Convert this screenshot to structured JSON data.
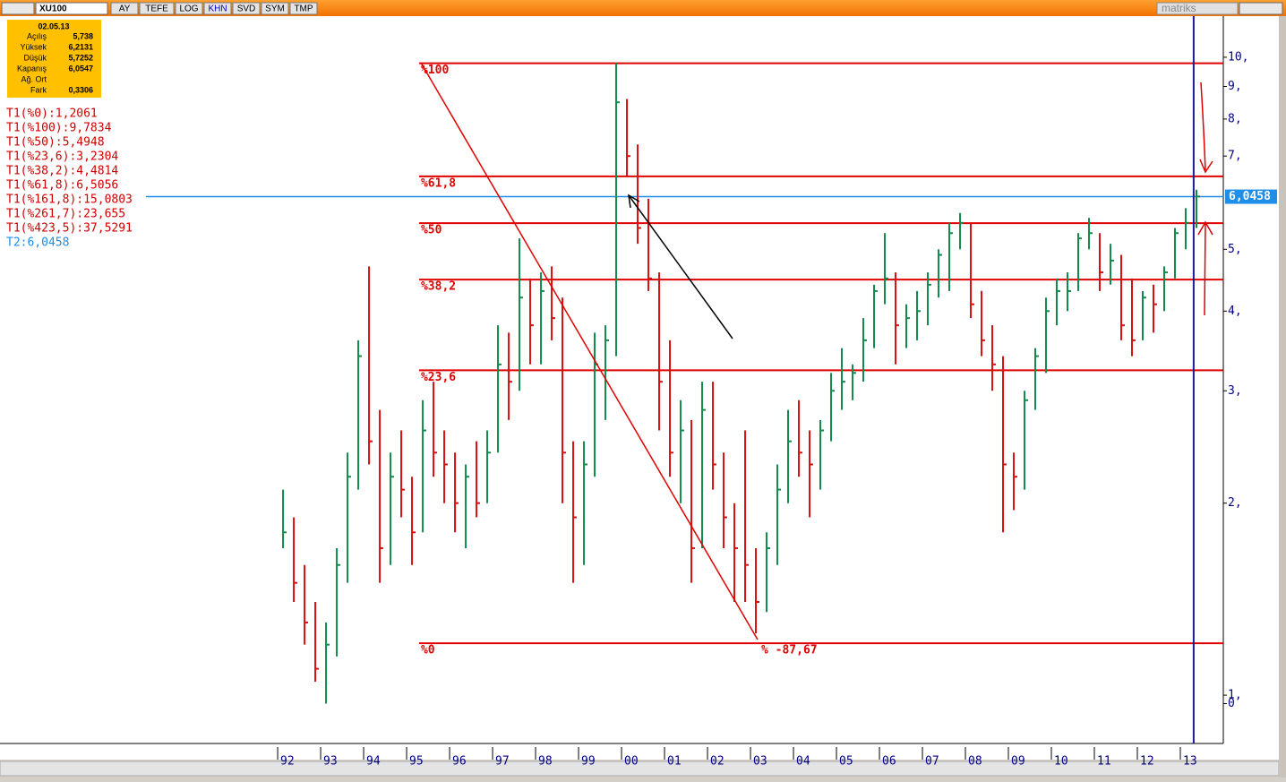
{
  "toolbar": {
    "symbol": "XU100",
    "buttons": [
      "AY",
      "TEFE",
      "LOG",
      "KHN",
      "SVD",
      "SYM",
      "TMP"
    ],
    "brand": "matriks"
  },
  "info": {
    "date": "02.05.13",
    "rows": [
      [
        "Açılış",
        "5,738"
      ],
      [
        "Yüksek",
        "6,2131"
      ],
      [
        "Düşük",
        "5,7252"
      ],
      [
        "Kapanış",
        "6,0547"
      ],
      [
        "Ağ. Ort"
      ],
      [
        "Fark",
        "0,3306"
      ]
    ]
  },
  "notes": [
    "T1(%0):1,2061",
    "T1(%100):9,7834",
    "T1(%50):5,4948",
    "T1(%23,6):3,2304",
    "T1(%38,2):4,4814",
    "T1(%61,8):6,5056",
    "T1(%161,8):15,0803",
    "T1(%261,7):23,655",
    "T1(%423,5):37,5291"
  ],
  "note2": "T2:6,0458",
  "chart_data": {
    "type": "ohlc",
    "log_scale": true,
    "up_color": "#128a4c",
    "down_color": "#d81010",
    "xlim": [
      1985.54,
      2014
    ],
    "ylim": [
      0.84,
      11.6
    ],
    "xticks": [
      {
        "value": 1992,
        "label": "92"
      },
      {
        "value": 1993,
        "label": "93"
      },
      {
        "value": 1994,
        "label": "94"
      },
      {
        "value": 1995,
        "label": "95"
      },
      {
        "value": 1996,
        "label": "96"
      },
      {
        "value": 1997,
        "label": "97"
      },
      {
        "value": 1998,
        "label": "98"
      },
      {
        "value": 1999,
        "label": "99"
      },
      {
        "value": 2000,
        "label": "00"
      },
      {
        "value": 2001,
        "label": "01"
      },
      {
        "value": 2002,
        "label": "02"
      },
      {
        "value": 2003,
        "label": "03"
      },
      {
        "value": 2004,
        "label": "04"
      },
      {
        "value": 2005,
        "label": "05"
      },
      {
        "value": 2006,
        "label": "06"
      },
      {
        "value": 2007,
        "label": "07"
      },
      {
        "value": 2008,
        "label": "08"
      },
      {
        "value": 2009,
        "label": "09"
      },
      {
        "value": 2010,
        "label": "10"
      },
      {
        "value": 2011,
        "label": "11"
      },
      {
        "value": 2012,
        "label": "12"
      },
      {
        "value": 2013,
        "label": "13"
      }
    ],
    "yticks": [
      {
        "value": 10,
        "label": "10,"
      },
      {
        "value": 9,
        "label": "9,"
      },
      {
        "value": 8,
        "label": "8,"
      },
      {
        "value": 7,
        "label": "7,"
      },
      {
        "value": 5,
        "label": "5,"
      },
      {
        "value": 4,
        "label": "4,"
      },
      {
        "value": 3,
        "label": "3,"
      },
      {
        "value": 2,
        "label": "2,"
      },
      {
        "value": 1,
        "label": "1,"
      },
      {
        "value": 0.97,
        "label": "0"
      }
    ],
    "fib_levels": [
      {
        "value": 9.7834,
        "label": "%100"
      },
      {
        "value": 6.5056,
        "label": "%61,8"
      },
      {
        "value": 5.4948,
        "label": "%50"
      },
      {
        "value": 4.4814,
        "label": "%38,2"
      },
      {
        "value": 3.2304,
        "label": "%23,6"
      },
      {
        "value": 1.2061,
        "label": "%0"
      }
    ],
    "fib_color": "#e00000",
    "fib_start": 1995.29,
    "trend_label": "% -87,67",
    "current": {
      "value": 6.0458,
      "label": "6,0458",
      "color": "#1e8ee8"
    },
    "cursor_x": 2013.31,
    "x": [
      1992.125,
      1992.375,
      1992.625,
      1992.875,
      1993.125,
      1993.375,
      1993.625,
      1993.875,
      1994.125,
      1994.375,
      1994.625,
      1994.875,
      1995.125,
      1995.375,
      1995.625,
      1995.875,
      1996.125,
      1996.375,
      1996.625,
      1996.875,
      1997.125,
      1997.375,
      1997.625,
      1997.875,
      1998.125,
      1998.375,
      1998.625,
      1998.875,
      1999.125,
      1999.375,
      1999.625,
      1999.875,
      2000.125,
      2000.375,
      2000.625,
      2000.875,
      2001.125,
      2001.375,
      2001.625,
      2001.875,
      2002.125,
      2002.375,
      2002.625,
      2002.875,
      2003.125,
      2003.375,
      2003.625,
      2003.875,
      2004.125,
      2004.375,
      2004.625,
      2004.875,
      2005.125,
      2005.375,
      2005.625,
      2005.875,
      2006.125,
      2006.375,
      2006.625,
      2006.875,
      2007.125,
      2007.375,
      2007.625,
      2007.875,
      2008.125,
      2008.375,
      2008.625,
      2008.875,
      2009.125,
      2009.375,
      2009.625,
      2009.875,
      2010.125,
      2010.375,
      2010.625,
      2010.875,
      2011.125,
      2011.375,
      2011.625,
      2011.875,
      2012.125,
      2012.375,
      2012.625,
      2012.875,
      2013.125,
      2013.375
    ],
    "high": [
      2.1,
      1.9,
      1.6,
      1.4,
      1.3,
      1.7,
      2.4,
      3.6,
      4.7,
      2.8,
      2.4,
      2.6,
      2.2,
      2.9,
      3.1,
      2.6,
      2.4,
      2.3,
      2.5,
      2.6,
      3.8,
      3.7,
      5.2,
      4.5,
      4.6,
      4.7,
      4.2,
      2.5,
      2.5,
      3.7,
      3.8,
      9.8,
      8.6,
      7.3,
      6.0,
      4.6,
      3.6,
      2.9,
      2.7,
      3.1,
      3.1,
      2.4,
      2.0,
      2.6,
      1.7,
      1.8,
      2.3,
      2.8,
      2.9,
      2.6,
      2.7,
      3.2,
      3.5,
      3.3,
      3.9,
      4.4,
      5.3,
      4.6,
      4.1,
      4.3,
      4.6,
      5.0,
      5.5,
      5.7,
      5.5,
      4.3,
      3.8,
      3.4,
      2.4,
      3.0,
      3.5,
      4.2,
      4.5,
      4.6,
      5.3,
      5.6,
      5.3,
      5.1,
      4.9,
      4.5,
      4.3,
      4.4,
      4.7,
      5.4,
      5.8,
      6.2
    ],
    "low": [
      1.7,
      1.4,
      1.2,
      1.05,
      0.97,
      1.15,
      1.5,
      2.1,
      2.3,
      1.5,
      1.6,
      1.9,
      1.6,
      1.8,
      2.2,
      2.0,
      1.8,
      1.7,
      1.9,
      2.0,
      2.4,
      2.7,
      3.0,
      3.3,
      3.3,
      3.6,
      2.0,
      1.5,
      1.6,
      2.2,
      2.7,
      3.4,
      6.5,
      5.1,
      4.3,
      2.6,
      2.2,
      2.0,
      1.5,
      1.7,
      2.1,
      1.7,
      1.4,
      1.4,
      1.25,
      1.35,
      1.6,
      2.0,
      2.2,
      1.9,
      2.1,
      2.5,
      2.8,
      2.9,
      3.1,
      3.5,
      4.1,
      3.3,
      3.5,
      3.6,
      3.8,
      4.2,
      4.3,
      5.0,
      3.9,
      3.4,
      3.0,
      1.8,
      1.95,
      2.1,
      2.8,
      3.2,
      3.8,
      4.0,
      4.3,
      5.0,
      4.3,
      4.4,
      3.6,
      3.4,
      3.6,
      3.7,
      4.0,
      4.5,
      5.0,
      5.4
    ],
    "close": [
      1.8,
      1.5,
      1.3,
      1.1,
      1.2,
      1.6,
      2.2,
      3.4,
      2.5,
      1.7,
      2.2,
      2.1,
      1.8,
      2.6,
      2.4,
      2.3,
      2.0,
      2.2,
      2.0,
      2.4,
      3.3,
      3.1,
      4.2,
      3.8,
      4.3,
      3.9,
      2.4,
      1.9,
      2.3,
      3.3,
      3.6,
      8.5,
      7.0,
      5.4,
      4.5,
      3.1,
      2.4,
      2.6,
      1.7,
      2.8,
      2.3,
      1.9,
      1.7,
      1.6,
      1.4,
      1.7,
      2.1,
      2.5,
      2.4,
      2.3,
      2.6,
      3.0,
      3.1,
      3.2,
      3.6,
      4.3,
      4.5,
      3.8,
      3.9,
      4.0,
      4.4,
      4.9,
      5.3,
      5.5,
      4.1,
      3.6,
      3.3,
      2.3,
      2.2,
      2.9,
      3.4,
      4.0,
      4.3,
      4.3,
      5.2,
      5.3,
      4.6,
      4.8,
      3.8,
      3.6,
      4.2,
      4.1,
      4.6,
      5.3,
      5.5,
      6.05
    ]
  }
}
